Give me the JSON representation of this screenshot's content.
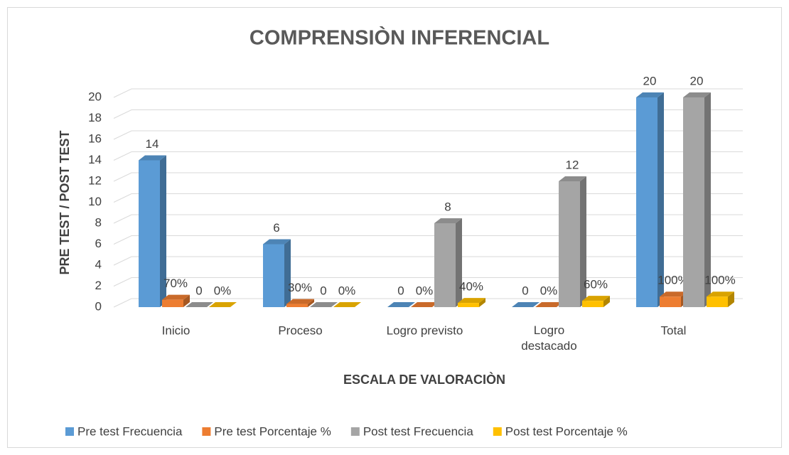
{
  "chart_data": {
    "type": "bar3d",
    "title": "COMPRENSIÒN INFERENCIAL",
    "y_label": "PRE TEST / POST TEST",
    "x_label": "ESCALA DE VALORACIÒN",
    "categories": [
      "Inicio",
      "Proceso",
      "Logro previsto",
      "Logro destacado",
      "Total"
    ],
    "series": [
      {
        "name": "Pre test Frecuencia",
        "color": "#5b9bd5",
        "values": [
          14,
          6,
          0,
          0,
          20
        ]
      },
      {
        "name": "Pre test Porcentaje %",
        "color": "#ed7d31",
        "values": [
          0.7,
          0.3,
          0,
          0,
          1
        ],
        "value_labels": [
          "70%",
          "30%",
          "0%",
          "0%",
          "100%"
        ]
      },
      {
        "name": "Post test Frecuencia",
        "color": "#a5a5a5",
        "values": [
          0,
          0,
          8,
          12,
          20
        ]
      },
      {
        "name": "Post test Porcentaje %",
        "color": "#ffc000",
        "values": [
          0,
          0,
          0.4,
          0.6,
          1
        ],
        "value_labels": [
          "0%",
          "0%",
          "40%",
          "60%",
          "100%"
        ]
      }
    ],
    "ylim": [
      0,
      20
    ],
    "yticks": [
      0,
      2,
      4,
      6,
      8,
      10,
      12,
      14,
      16,
      18,
      20
    ],
    "grid": true,
    "legend": "bottom"
  }
}
